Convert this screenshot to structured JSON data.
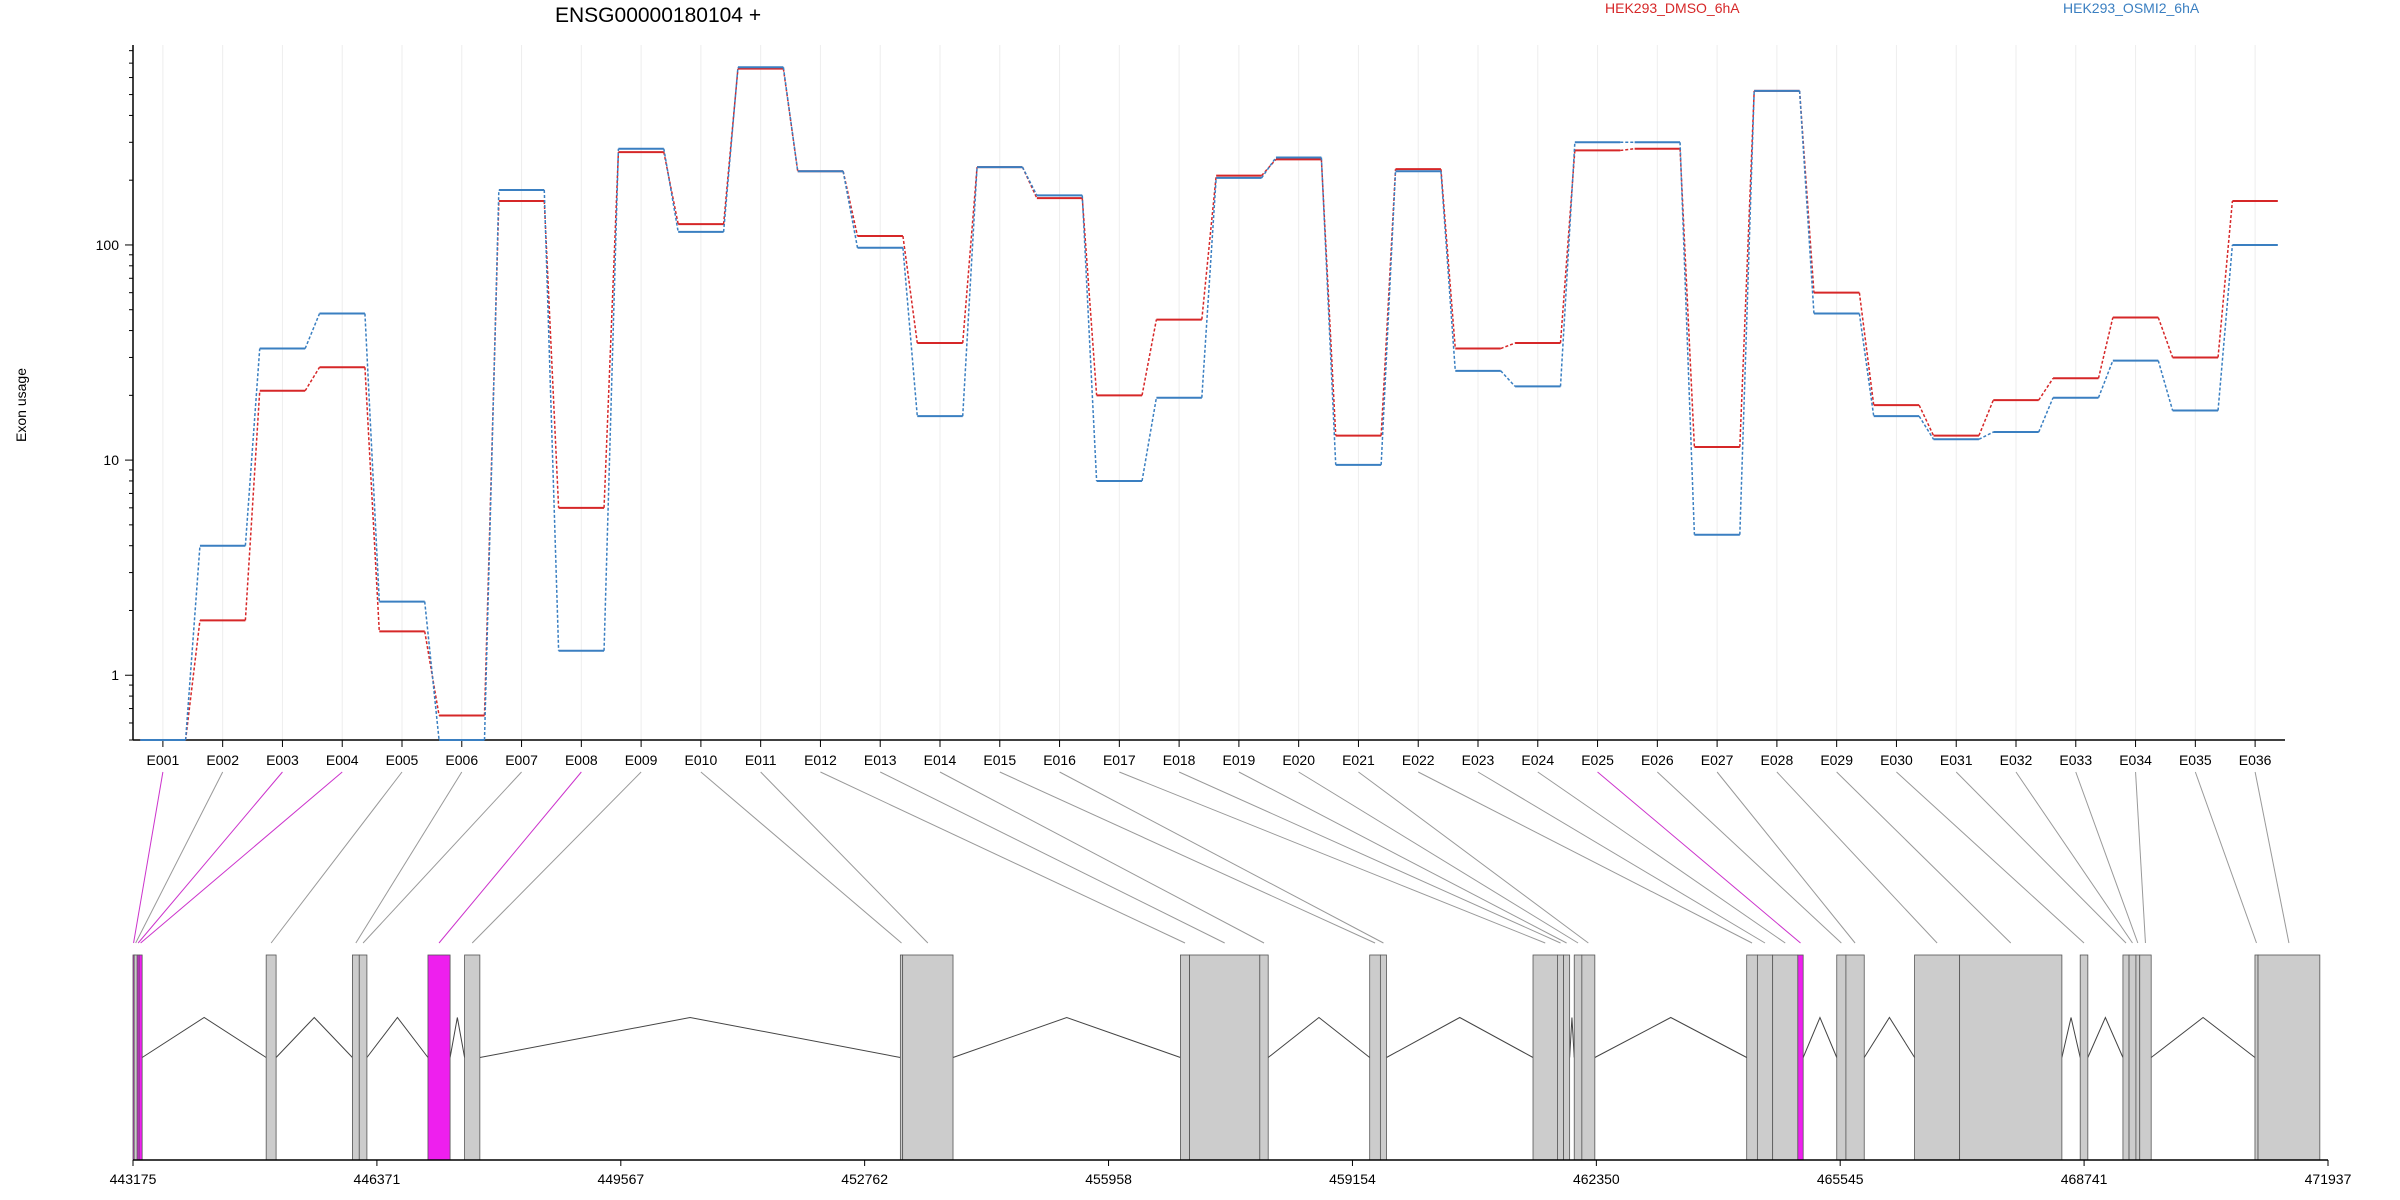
{
  "chart_data": {
    "type": "line",
    "title": "ENSG00000180104 +",
    "ylabel": "Exon usage",
    "xlabel": "",
    "yscale": "log",
    "ylim": [
      0.5,
      850
    ],
    "yticks": [
      {
        "value": 1,
        "label": "1"
      },
      {
        "value": 10,
        "label": "10"
      },
      {
        "value": 100,
        "label": "100"
      }
    ],
    "categories": [
      "E001",
      "E002",
      "E003",
      "E004",
      "E005",
      "E006",
      "E007",
      "E008",
      "E009",
      "E010",
      "E011",
      "E012",
      "E013",
      "E014",
      "E015",
      "E016",
      "E017",
      "E018",
      "E019",
      "E020",
      "E021",
      "E022",
      "E023",
      "E024",
      "E025",
      "E026",
      "E027",
      "E028",
      "E029",
      "E030",
      "E031",
      "E032",
      "E033",
      "E034",
      "E035",
      "E036"
    ],
    "series": [
      {
        "name": "HEK293_DMSO_6hA",
        "color": "#d62728",
        "values": [
          0.5,
          1.8,
          21,
          27,
          1.6,
          0.65,
          160,
          6,
          270,
          125,
          660,
          220,
          110,
          35,
          230,
          165,
          20,
          45,
          210,
          250,
          13,
          225,
          33,
          35,
          275,
          280,
          11.5,
          520,
          60,
          18,
          13,
          19,
          24,
          46,
          30,
          160
        ]
      },
      {
        "name": "HEK293_OSMI2_6hA",
        "color": "#3a7fc1",
        "values": [
          0.5,
          4,
          33,
          48,
          2.2,
          0.5,
          180,
          1.3,
          280,
          115,
          670,
          220,
          97,
          16,
          230,
          170,
          8,
          19.5,
          205,
          255,
          9.5,
          220,
          26,
          22,
          300,
          300,
          4.5,
          520,
          48,
          16,
          12.5,
          13.5,
          19.5,
          29,
          17,
          100
        ]
      }
    ],
    "highlighted_exons": [
      "E001",
      "E003",
      "E004",
      "E008",
      "E025"
    ],
    "genome_axis": {
      "range": [
        443175,
        471937
      ],
      "ticks": [
        "443175",
        "446371",
        "449567",
        "452762",
        "455958",
        "459154",
        "462350",
        "465545",
        "468741",
        "471937"
      ]
    },
    "exons": [
      {
        "id": "E001",
        "start": 443175,
        "end": 443190
      },
      {
        "id": "E002",
        "start": 443190,
        "end": 443230
      },
      {
        "id": "E003",
        "start": 443230,
        "end": 443255
      },
      {
        "id": "E004",
        "start": 443255,
        "end": 443295
      },
      {
        "id": "E005",
        "start": 444920,
        "end": 445050
      },
      {
        "id": "E006",
        "start": 446050,
        "end": 446140
      },
      {
        "id": "E007",
        "start": 446140,
        "end": 446240
      },
      {
        "id": "E008",
        "start": 447040,
        "end": 447330
      },
      {
        "id": "E009",
        "start": 447520,
        "end": 447720
      },
      {
        "id": "E010",
        "start": 453230,
        "end": 453260
      },
      {
        "id": "E011",
        "start": 453260,
        "end": 453920
      },
      {
        "id": "E012",
        "start": 456900,
        "end": 457020
      },
      {
        "id": "E013",
        "start": 457020,
        "end": 457940
      },
      {
        "id": "E014",
        "start": 457940,
        "end": 458050
      },
      {
        "id": "E015",
        "start": 459380,
        "end": 459520
      },
      {
        "id": "E016",
        "start": 459520,
        "end": 459600
      },
      {
        "id": "E017",
        "start": 461520,
        "end": 461840
      },
      {
        "id": "E018",
        "start": 461840,
        "end": 461920
      },
      {
        "id": "E019",
        "start": 461920,
        "end": 462000
      },
      {
        "id": "E020",
        "start": 462060,
        "end": 462160
      },
      {
        "id": "E021",
        "start": 462160,
        "end": 462330
      },
      {
        "id": "E022",
        "start": 464320,
        "end": 464460
      },
      {
        "id": "E023",
        "start": 464460,
        "end": 464660
      },
      {
        "id": "E024",
        "start": 464660,
        "end": 464990
      },
      {
        "id": "E025",
        "start": 464990,
        "end": 465060
      },
      {
        "id": "E026",
        "start": 465500,
        "end": 465620
      },
      {
        "id": "E027",
        "start": 465620,
        "end": 465860
      },
      {
        "id": "E028",
        "start": 466520,
        "end": 467110
      },
      {
        "id": "E029",
        "start": 467110,
        "end": 468450
      },
      {
        "id": "E030",
        "start": 468690,
        "end": 468790
      },
      {
        "id": "E031",
        "start": 469250,
        "end": 469330
      },
      {
        "id": "E032",
        "start": 469330,
        "end": 469420
      },
      {
        "id": "E033",
        "start": 469420,
        "end": 469470
      },
      {
        "id": "E034",
        "start": 469470,
        "end": 469620
      },
      {
        "id": "E035",
        "start": 470980,
        "end": 471020
      },
      {
        "id": "E036",
        "start": 471020,
        "end": 471830
      }
    ]
  }
}
